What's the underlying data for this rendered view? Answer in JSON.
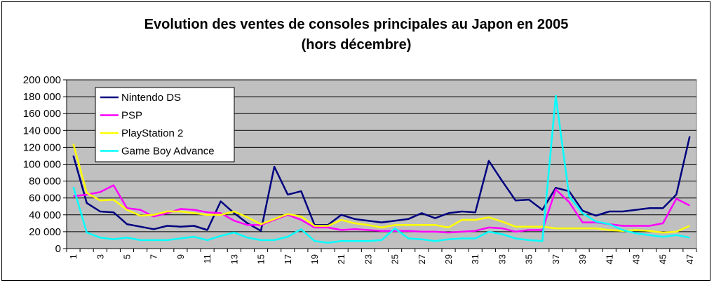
{
  "chart_data": {
    "type": "line",
    "title": "Evolution des ventes de consoles principales au Japon en 2005",
    "subtitle": "(hors décembre)",
    "xlabel": "",
    "ylabel": "",
    "ylim": [
      0,
      200000
    ],
    "yticks": [
      "0",
      "20 000",
      "40 000",
      "60 000",
      "80 000",
      "100 000",
      "120 000",
      "140 000",
      "160 000",
      "180 000",
      "200 000"
    ],
    "x": [
      1,
      2,
      3,
      4,
      5,
      6,
      7,
      8,
      9,
      10,
      11,
      12,
      13,
      14,
      15,
      16,
      17,
      18,
      19,
      20,
      21,
      22,
      23,
      24,
      25,
      26,
      27,
      28,
      29,
      30,
      31,
      32,
      33,
      34,
      35,
      36,
      37,
      38,
      39,
      40,
      41,
      42,
      43,
      44,
      45,
      46,
      47
    ],
    "xtick_labels": [
      "1",
      "3",
      "5",
      "7",
      "9",
      "11",
      "13",
      "15",
      "17",
      "19",
      "21",
      "23",
      "25",
      "27",
      "29",
      "31",
      "33",
      "35",
      "37",
      "39",
      "41",
      "43",
      "45",
      "47"
    ],
    "grid": true,
    "plot_background": "#c0c0c0",
    "legend_position": "top-left",
    "series": [
      {
        "name": "Nintendo DS",
        "color": "#000080",
        "values": [
          110000,
          54000,
          44000,
          43000,
          29000,
          26000,
          23000,
          27000,
          26000,
          27000,
          22000,
          56000,
          42000,
          30000,
          21000,
          97000,
          64000,
          68000,
          28000,
          28000,
          40000,
          35000,
          33000,
          31000,
          33000,
          35000,
          42000,
          36000,
          42000,
          44000,
          43000,
          104000,
          80000,
          57000,
          58000,
          46000,
          72000,
          68000,
          45000,
          39000,
          44000,
          44000,
          46000,
          48000,
          48000,
          64000,
          133000
        ]
      },
      {
        "name": "PSP",
        "color": "#ff00ff",
        "values": [
          62000,
          64000,
          67000,
          75000,
          48000,
          46000,
          38000,
          42000,
          47000,
          46000,
          43000,
          42000,
          33000,
          28000,
          28000,
          34000,
          40000,
          34000,
          25000,
          25000,
          22000,
          23000,
          22000,
          21000,
          21000,
          21000,
          20000,
          20000,
          19000,
          20000,
          21000,
          25000,
          24000,
          20000,
          22000,
          22000,
          70000,
          55000,
          31000,
          31000,
          29000,
          27000,
          27000,
          27000,
          30000,
          59000,
          51000
        ]
      },
      {
        "name": "PlayStation 2",
        "color": "#ffff00",
        "values": [
          124000,
          66000,
          57000,
          58000,
          46000,
          39000,
          40000,
          44000,
          44000,
          42000,
          40000,
          40000,
          44000,
          37000,
          29000,
          35000,
          41000,
          38000,
          27000,
          27000,
          34000,
          30000,
          28000,
          25000,
          28000,
          28000,
          28000,
          28000,
          25000,
          34000,
          34000,
          37000,
          32000,
          26000,
          26000,
          26000,
          24000,
          24000,
          24000,
          24000,
          22000,
          21000,
          22000,
          21000,
          19000,
          20000,
          27000
        ]
      },
      {
        "name": "Game Boy Advance",
        "color": "#00ffff",
        "values": [
          73000,
          19000,
          13000,
          11000,
          13000,
          10000,
          10000,
          10000,
          12000,
          14000,
          10000,
          15000,
          19000,
          13000,
          10000,
          10000,
          14000,
          23000,
          9000,
          7000,
          9000,
          9000,
          9000,
          10000,
          24000,
          12000,
          11000,
          9000,
          11000,
          12000,
          12000,
          20000,
          17000,
          12000,
          10000,
          9000,
          181000,
          62000,
          42000,
          32000,
          29000,
          22000,
          18000,
          16000,
          14000,
          16000,
          13000
        ]
      }
    ]
  }
}
